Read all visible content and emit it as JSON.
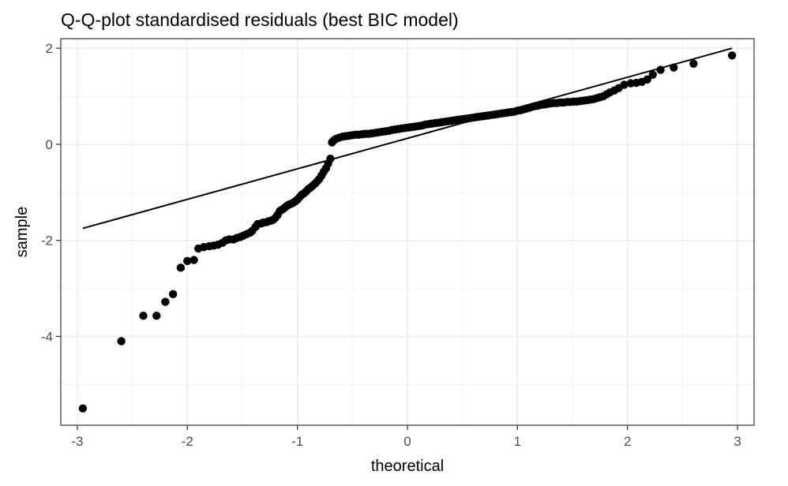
{
  "chart_data": {
    "type": "scatter",
    "title": "Q-Q-plot standardised residuals (best BIC model)",
    "xlabel": "theoretical",
    "ylabel": "sample",
    "xlim": [
      -3.15,
      3.15
    ],
    "ylim": [
      -5.85,
      2.2
    ],
    "x_ticks": [
      -3,
      -2,
      -1,
      0,
      1,
      2,
      3
    ],
    "x_tick_labels": [
      "-3",
      "-2",
      "-1",
      "0",
      "1",
      "2",
      "3"
    ],
    "y_ticks": [
      -4,
      -2,
      0,
      2
    ],
    "y_tick_labels": [
      "-4",
      "-2",
      "0",
      "2"
    ],
    "grid": true,
    "theme": "black-and-white",
    "reference_line": {
      "x": [
        -2.95,
        2.95
      ],
      "y": [
        -1.75,
        2.0
      ]
    },
    "points": [
      [
        -2.95,
        -5.5
      ],
      [
        -2.6,
        -4.1
      ],
      [
        -2.4,
        -3.57
      ],
      [
        -2.28,
        -3.57
      ],
      [
        -2.2,
        -3.28
      ],
      [
        -2.13,
        -3.12
      ],
      [
        -2.06,
        -2.57
      ],
      [
        -2.0,
        -2.43
      ],
      [
        -1.94,
        -2.41
      ],
      [
        -1.9,
        -2.17
      ],
      [
        -1.85,
        -2.14
      ],
      [
        -1.8,
        -2.12
      ],
      [
        -1.76,
        -2.11
      ],
      [
        -1.72,
        -2.09
      ],
      [
        -1.68,
        -2.05
      ],
      [
        -1.65,
        -2.0
      ],
      [
        -1.62,
        -1.98
      ],
      [
        -1.58,
        -1.98
      ],
      [
        -1.55,
        -1.95
      ],
      [
        -1.52,
        -1.93
      ],
      [
        -1.49,
        -1.9
      ],
      [
        -1.46,
        -1.87
      ],
      [
        -1.43,
        -1.84
      ],
      [
        -1.41,
        -1.8
      ],
      [
        -1.38,
        -1.72
      ],
      [
        -1.36,
        -1.66
      ],
      [
        -1.33,
        -1.65
      ],
      [
        -1.31,
        -1.63
      ],
      [
        -1.28,
        -1.62
      ],
      [
        -1.26,
        -1.6
      ],
      [
        -1.24,
        -1.59
      ],
      [
        -1.22,
        -1.57
      ],
      [
        -1.2,
        -1.53
      ],
      [
        -1.18,
        -1.47
      ],
      [
        -1.16,
        -1.39
      ],
      [
        -1.14,
        -1.36
      ],
      [
        -1.12,
        -1.33
      ],
      [
        -1.1,
        -1.29
      ],
      [
        -1.08,
        -1.26
      ],
      [
        -1.06,
        -1.24
      ],
      [
        -1.04,
        -1.22
      ],
      [
        -1.02,
        -1.19
      ],
      [
        -1.0,
        -1.15
      ],
      [
        -0.98,
        -1.1
      ],
      [
        -0.96,
        -1.05
      ],
      [
        -0.94,
        -1.02
      ],
      [
        -0.92,
        -0.98
      ],
      [
        -0.9,
        -0.93
      ],
      [
        -0.88,
        -0.9
      ],
      [
        -0.86,
        -0.86
      ],
      [
        -0.84,
        -0.82
      ],
      [
        -0.82,
        -0.77
      ],
      [
        -0.8,
        -0.72
      ],
      [
        -0.78,
        -0.65
      ],
      [
        -0.76,
        -0.57
      ],
      [
        -0.74,
        -0.5
      ],
      [
        -0.72,
        -0.4
      ],
      [
        -0.7,
        -0.3
      ],
      [
        -0.685,
        0.04
      ],
      [
        -0.67,
        0.08
      ],
      [
        -0.65,
        0.11
      ],
      [
        -0.62,
        0.14
      ],
      [
        -0.59,
        0.16
      ],
      [
        -0.56,
        0.17
      ],
      [
        -0.53,
        0.18
      ],
      [
        -0.5,
        0.19
      ],
      [
        -0.47,
        0.2
      ],
      [
        -0.44,
        0.2
      ],
      [
        -0.41,
        0.21
      ],
      [
        -0.38,
        0.22
      ],
      [
        -0.35,
        0.22
      ],
      [
        -0.32,
        0.23
      ],
      [
        -0.29,
        0.24
      ],
      [
        -0.26,
        0.25
      ],
      [
        -0.23,
        0.26
      ],
      [
        -0.2,
        0.27
      ],
      [
        -0.17,
        0.28
      ],
      [
        -0.14,
        0.3
      ],
      [
        -0.11,
        0.31
      ],
      [
        -0.08,
        0.32
      ],
      [
        -0.05,
        0.33
      ],
      [
        -0.02,
        0.34
      ],
      [
        0.01,
        0.35
      ],
      [
        0.04,
        0.36
      ],
      [
        0.07,
        0.37
      ],
      [
        0.1,
        0.38
      ],
      [
        0.13,
        0.39
      ],
      [
        0.16,
        0.41
      ],
      [
        0.19,
        0.42
      ],
      [
        0.22,
        0.43
      ],
      [
        0.25,
        0.44
      ],
      [
        0.28,
        0.45
      ],
      [
        0.31,
        0.46
      ],
      [
        0.34,
        0.47
      ],
      [
        0.37,
        0.48
      ],
      [
        0.4,
        0.49
      ],
      [
        0.43,
        0.5
      ],
      [
        0.46,
        0.51
      ],
      [
        0.49,
        0.52
      ],
      [
        0.52,
        0.53
      ],
      [
        0.55,
        0.54
      ],
      [
        0.58,
        0.55
      ],
      [
        0.61,
        0.56
      ],
      [
        0.64,
        0.57
      ],
      [
        0.67,
        0.58
      ],
      [
        0.7,
        0.59
      ],
      [
        0.73,
        0.6
      ],
      [
        0.76,
        0.61
      ],
      [
        0.79,
        0.62
      ],
      [
        0.82,
        0.63
      ],
      [
        0.85,
        0.64
      ],
      [
        0.88,
        0.65
      ],
      [
        0.91,
        0.66
      ],
      [
        0.94,
        0.67
      ],
      [
        0.97,
        0.68
      ],
      [
        1.0,
        0.7
      ],
      [
        1.03,
        0.71
      ],
      [
        1.06,
        0.73
      ],
      [
        1.09,
        0.75
      ],
      [
        1.12,
        0.77
      ],
      [
        1.15,
        0.79
      ],
      [
        1.18,
        0.8
      ],
      [
        1.21,
        0.82
      ],
      [
        1.24,
        0.83
      ],
      [
        1.27,
        0.84
      ],
      [
        1.3,
        0.85
      ],
      [
        1.33,
        0.86
      ],
      [
        1.36,
        0.86
      ],
      [
        1.39,
        0.87
      ],
      [
        1.42,
        0.87
      ],
      [
        1.45,
        0.88
      ],
      [
        1.48,
        0.88
      ],
      [
        1.51,
        0.89
      ],
      [
        1.54,
        0.89
      ],
      [
        1.57,
        0.9
      ],
      [
        1.6,
        0.91
      ],
      [
        1.63,
        0.92
      ],
      [
        1.66,
        0.93
      ],
      [
        1.69,
        0.94
      ],
      [
        1.72,
        0.96
      ],
      [
        1.75,
        0.98
      ],
      [
        1.78,
        1.0
      ],
      [
        1.81,
        1.04
      ],
      [
        1.84,
        1.08
      ],
      [
        1.88,
        1.12
      ],
      [
        1.92,
        1.17
      ],
      [
        1.97,
        1.24
      ],
      [
        2.03,
        1.27
      ],
      [
        2.08,
        1.28
      ],
      [
        2.13,
        1.3
      ],
      [
        2.18,
        1.35
      ],
      [
        2.23,
        1.45
      ],
      [
        2.3,
        1.55
      ],
      [
        2.42,
        1.6
      ],
      [
        2.6,
        1.68
      ],
      [
        2.95,
        1.85
      ]
    ]
  }
}
